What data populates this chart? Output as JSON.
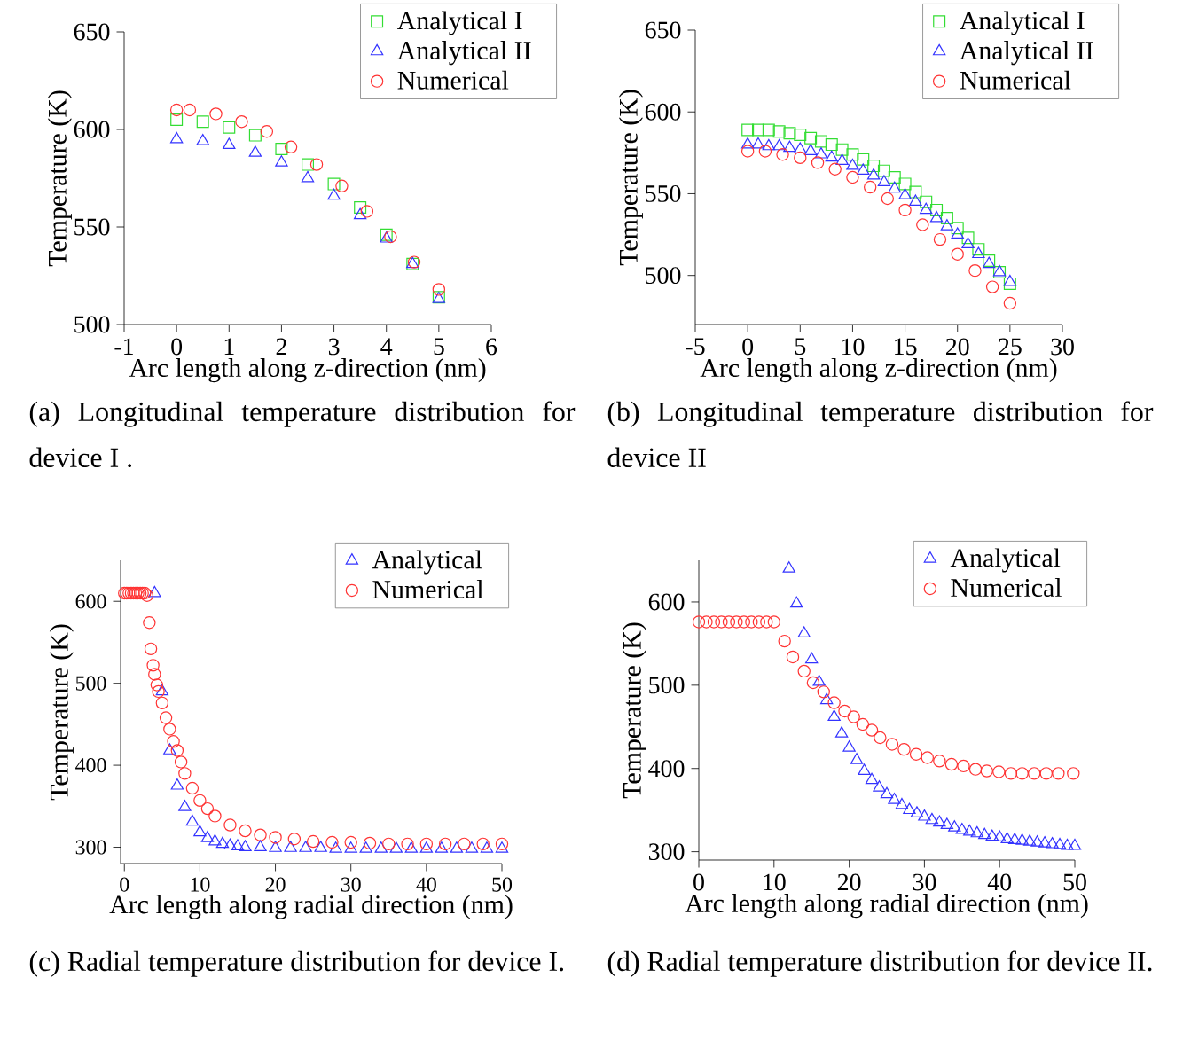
{
  "chart_data": [
    {
      "type": "scatter",
      "xlabel": "Arc length along z-direction (nm)",
      "ylabel": "Temperature (K)",
      "xlim": [
        -1,
        6
      ],
      "ylim": [
        500,
        650
      ],
      "xticks": [
        -1,
        0,
        1,
        2,
        3,
        4,
        5,
        6
      ],
      "yticks": [
        500,
        550,
        600,
        650
      ],
      "legend": "top right",
      "annotations": [
        "(a) Longitudinal temperature distribution for device I ."
      ],
      "series": [
        {
          "name": "Analytical I",
          "color": "#33dd33",
          "marker": "square",
          "x": [
            0,
            0.5,
            1,
            1.5,
            2,
            2.5,
            3,
            3.5,
            4,
            4.5,
            5
          ],
          "values": [
            605,
            604,
            601,
            597,
            590,
            582,
            572,
            560,
            546,
            531,
            514
          ]
        },
        {
          "name": "Analytical II",
          "color": "#3333ff",
          "marker": "triangle",
          "x": [
            0,
            0.5,
            1,
            1.5,
            2,
            2.5,
            3,
            3.5,
            4,
            4.5,
            5
          ],
          "values": [
            595,
            594,
            592,
            588,
            583,
            575,
            566,
            556,
            544,
            531,
            513
          ]
        },
        {
          "name": "Numerical",
          "color": "#ff3333",
          "marker": "circle",
          "x": [
            0,
            0.25,
            0.75,
            1.24,
            1.72,
            2.18,
            2.67,
            3.15,
            3.63,
            4.08,
            4.53,
            5.0
          ],
          "values": [
            610,
            610,
            608,
            604,
            599,
            591,
            582,
            571,
            558,
            545,
            532,
            518
          ]
        }
      ]
    },
    {
      "type": "scatter",
      "xlabel": "Arc length along z-direction (nm)",
      "ylabel": "Temperature (K)",
      "xlim": [
        -5,
        30
      ],
      "ylim": [
        470,
        650
      ],
      "xticks": [
        -5,
        0,
        5,
        10,
        15,
        20,
        25,
        30
      ],
      "yticks": [
        500,
        550,
        600,
        650
      ],
      "legend": "top right",
      "annotations": [
        "(b) Longitudinal temperature distribution for device II"
      ],
      "series": [
        {
          "name": "Analytical I",
          "color": "#33dd33",
          "marker": "square",
          "x": [
            0,
            1,
            2,
            3,
            4,
            5,
            6,
            7,
            8,
            9,
            10,
            11,
            12,
            13,
            14,
            15,
            16,
            17,
            18,
            19,
            20,
            21,
            22,
            23,
            24,
            25
          ],
          "values": [
            589,
            589,
            589,
            588,
            587,
            586,
            584,
            582,
            580,
            577,
            574,
            571,
            567,
            564,
            560,
            556,
            551,
            545,
            540,
            535,
            529,
            523,
            516,
            509,
            502,
            495
          ]
        },
        {
          "name": "Analytical II",
          "color": "#3333ff",
          "marker": "triangle",
          "x": [
            0,
            1,
            2,
            3,
            4,
            5,
            6,
            7,
            8,
            9,
            10,
            11,
            12,
            13,
            14,
            15,
            16,
            17,
            18,
            19,
            20,
            21,
            22,
            23,
            24,
            25
          ],
          "values": [
            580,
            580,
            579,
            579,
            578,
            577,
            576,
            574,
            572,
            570,
            567,
            564,
            561,
            557,
            553,
            549,
            545,
            540,
            535,
            530,
            525,
            519,
            513,
            507,
            502,
            496
          ]
        },
        {
          "name": "Numerical",
          "color": "#ff3333",
          "marker": "circle",
          "x": [
            0,
            1.67,
            3.33,
            5,
            6.67,
            8.33,
            10,
            11.67,
            13.33,
            15,
            16.67,
            18.33,
            20,
            21.67,
            23.33,
            25
          ],
          "values": [
            576,
            576,
            574,
            572,
            569,
            565,
            560,
            554,
            547,
            540,
            531,
            522,
            513,
            503,
            493,
            483
          ]
        }
      ]
    },
    {
      "type": "scatter",
      "xlabel": "Arc length along radial direction (nm)",
      "ylabel": "Temperature (K)",
      "xlim": [
        -0.5,
        50
      ],
      "ylim": [
        280,
        650
      ],
      "xticks": [
        0,
        10,
        20,
        30,
        40,
        50
      ],
      "yticks": [
        300,
        400,
        500,
        600
      ],
      "legend": "top right",
      "annotations": [
        "(c) Radial temperature distribution for device I."
      ],
      "series": [
        {
          "name": "Analytical",
          "color": "#3333ff",
          "marker": "triangle",
          "x": [
            4,
            5,
            6,
            7,
            8,
            9,
            10,
            11,
            12,
            13,
            14,
            15,
            16,
            18,
            20,
            22,
            24,
            26,
            28,
            30,
            32,
            34,
            36,
            38,
            40,
            42,
            44,
            46,
            48,
            50
          ],
          "values": [
            610,
            490,
            418,
            375,
            349,
            331,
            318,
            311,
            307,
            304,
            302,
            301,
            300,
            300,
            299,
            299,
            299,
            299,
            298,
            298,
            298,
            298,
            298,
            298,
            298,
            298,
            298,
            298,
            298,
            298
          ]
        },
        {
          "name": "Numerical",
          "color": "#ff3333",
          "marker": "circle",
          "x": [
            0,
            0.3,
            0.6,
            0.9,
            1.2,
            1.5,
            1.8,
            2.1,
            2.4,
            2.7,
            3.0,
            3.3,
            3.5,
            3.8,
            4.0,
            4.3,
            4.5,
            5,
            5.5,
            6,
            6.5,
            7,
            7.5,
            8,
            9,
            10,
            11,
            12,
            14,
            16,
            18,
            20,
            22.5,
            25,
            27.5,
            30,
            32.5,
            35,
            37.5,
            40,
            42.5,
            45,
            47.5,
            50
          ],
          "values": [
            610,
            610,
            610,
            610,
            610,
            610,
            610,
            610,
            610,
            610,
            607,
            574,
            542,
            522,
            511,
            498,
            490,
            476,
            458,
            444,
            429,
            418,
            404,
            390,
            372,
            357,
            347,
            338,
            327,
            320,
            315,
            312,
            310,
            307,
            306,
            306,
            305,
            304,
            304,
            304,
            304,
            304,
            304,
            304
          ]
        }
      ]
    },
    {
      "type": "scatter",
      "xlabel": "Arc length along radial direction (nm)",
      "ylabel": "Temperature (K)",
      "xlim": [
        0,
        50
      ],
      "ylim": [
        290,
        650
      ],
      "xticks": [
        0,
        10,
        20,
        30,
        40,
        50
      ],
      "yticks": [
        300,
        400,
        500,
        600
      ],
      "legend": "top right",
      "annotations": [
        "(d) Radial temperature distribution for device II."
      ],
      "series": [
        {
          "name": "Analytical",
          "color": "#3333ff",
          "marker": "triangle",
          "x": [
            12,
            13,
            14,
            15,
            16,
            17,
            18,
            19,
            20,
            21,
            22,
            23,
            24,
            25,
            26,
            27,
            28,
            29,
            30,
            31,
            32,
            33,
            34,
            35,
            36,
            37,
            38,
            39,
            40,
            41,
            42,
            43,
            44,
            45,
            46,
            47,
            48,
            49,
            50
          ],
          "values": [
            640,
            598,
            562,
            531,
            504,
            482,
            462,
            442,
            425,
            410,
            397,
            386,
            377,
            369,
            362,
            356,
            350,
            346,
            342,
            338,
            335,
            332,
            329,
            326,
            324,
            322,
            320,
            318,
            317,
            315,
            314,
            313,
            312,
            311,
            310,
            309,
            308,
            307,
            307
          ]
        },
        {
          "name": "Numerical",
          "color": "#ff3333",
          "marker": "circle",
          "x": [
            0,
            1,
            2,
            3,
            4,
            5,
            6,
            7,
            8,
            9,
            10,
            11.4,
            12.5,
            14,
            15.2,
            16.6,
            18,
            19.4,
            20.6,
            21.8,
            23,
            24.1,
            25.7,
            27.3,
            28.9,
            30.4,
            32,
            33.6,
            35.2,
            36.8,
            38.3,
            39.9,
            41.5,
            43,
            44.6,
            46.2,
            47.8,
            49.8
          ],
          "values": [
            576,
            576,
            576,
            576,
            576,
            576,
            576,
            576,
            576,
            576,
            576,
            553,
            534,
            517,
            503,
            492,
            479,
            469,
            462,
            453,
            446,
            437,
            429,
            423,
            417,
            413,
            409,
            405,
            403,
            399,
            397,
            396,
            394,
            394,
            394,
            394,
            394,
            394
          ]
        }
      ]
    }
  ]
}
